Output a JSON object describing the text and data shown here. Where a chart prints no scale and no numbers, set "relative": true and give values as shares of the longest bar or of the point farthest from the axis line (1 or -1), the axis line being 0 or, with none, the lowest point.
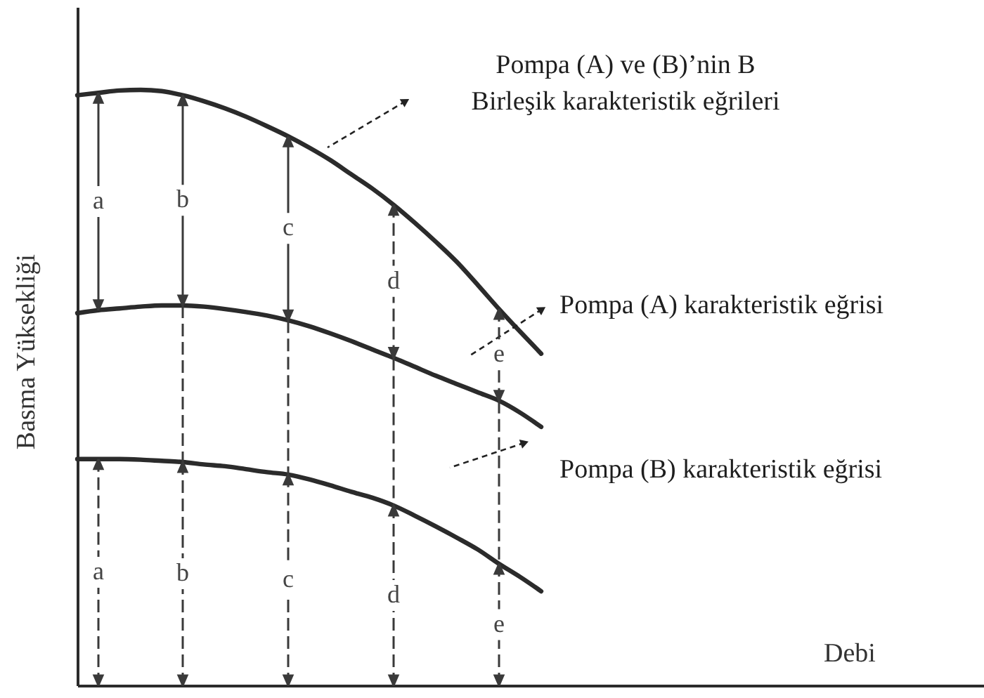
{
  "chart_data": {
    "type": "line",
    "relative": true,
    "tick_labels": false,
    "line_style": "solid",
    "ylabel": "Basma Yüksekliği",
    "categories": [
      null,
      null,
      null,
      null,
      null,
      null,
      null,
      null,
      null,
      null,
      null,
      null,
      null,
      null,
      null,
      null,
      null,
      null,
      null,
      null,
      null,
      null,
      null
    ],
    "series": [
      {
        "color": "#2b2b2b",
        "values": [
          0.991,
          0.995,
          0.999,
          1,
          0.998,
          0.991,
          0.981,
          0.969,
          0.955,
          0.939,
          0.922,
          0.903,
          0.882,
          0.858,
          0.834,
          0.807,
          0.777,
          0.745,
          0.711,
          0.672,
          0.632,
          0.594,
          0.557
        ]
      },
      {
        "color": "#2b2b2b",
        "values": [
          0.625,
          0.63,
          0.633,
          0.636,
          0.638,
          0.638,
          0.636,
          0.632,
          0.627,
          0.621,
          0.613,
          0.603,
          0.591,
          0.578,
          0.564,
          0.55,
          0.535,
          0.52,
          0.506,
          0.492,
          0.478,
          0.458,
          0.434
        ]
      },
      {
        "color": "#2b2b2b",
        "values": [
          0.38,
          0.38,
          0.38,
          0.379,
          0.377,
          0.375,
          0.371,
          0.368,
          0.363,
          0.358,
          0.354,
          0.346,
          0.336,
          0.325,
          0.315,
          0.302,
          0.285,
          0.267,
          0.248,
          0.228,
          0.204,
          0.182,
          0.158
        ]
      }
    ],
    "annotations": [
      "Pompa (A) ve (B)’nin B\nBirleşik karakteristik eğrileri",
      "Pompa (A) karakteristik eğrisi",
      "Pompa (B) karakteristik eğrisi",
      "Debi",
      "a",
      "b",
      "c",
      "d",
      "e",
      "a",
      "b",
      "c",
      "d",
      "e"
    ]
  }
}
